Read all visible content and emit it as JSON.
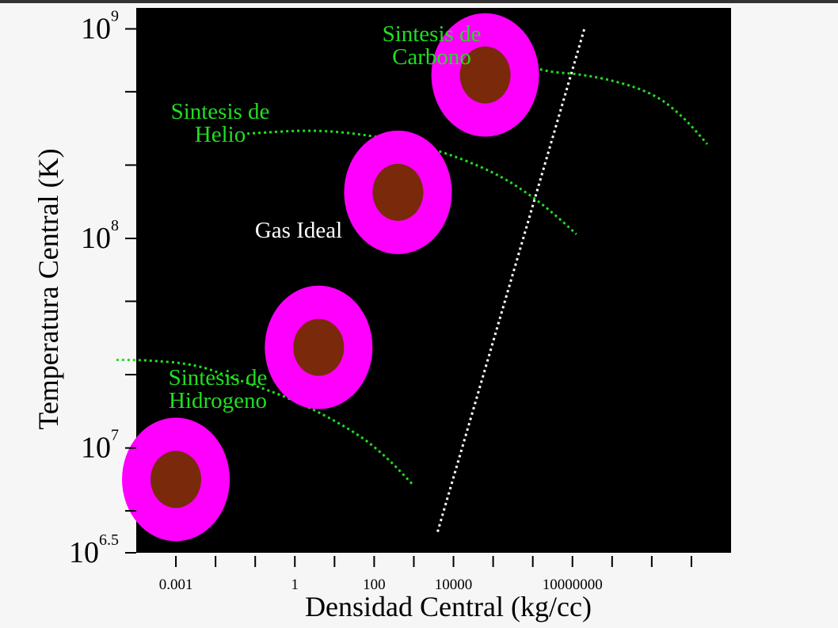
{
  "chart_data": {
    "type": "scatter",
    "xlabel": "Densidad Central (kg/cc)",
    "ylabel": "Temperatura Central (K)",
    "x_scale": "log",
    "y_scale": "log",
    "xlim_log10": [
      -4,
      11
    ],
    "ylim_log10": [
      6.5,
      9.1
    ],
    "x_tick_labels": [
      {
        "log": -3,
        "label": "0.001"
      },
      {
        "log": 0,
        "label": "1"
      },
      {
        "log": 2,
        "label": "100"
      },
      {
        "log": 4,
        "label": "10000"
      },
      {
        "log": 7,
        "label": "10000000"
      }
    ],
    "x_minor_ticks_log": [
      -3,
      -2,
      -1,
      0,
      1,
      2,
      3,
      4,
      5,
      6,
      7,
      8,
      9,
      10
    ],
    "y_tick_labels": [
      {
        "log": 9,
        "base": "10",
        "exp": "9"
      },
      {
        "log": 8,
        "base": "10",
        "exp": "8"
      },
      {
        "log": 7,
        "base": "10",
        "exp": "7"
      },
      {
        "log": 6.5,
        "base": "10",
        "exp": "6.5"
      }
    ],
    "y_minor_ticks_log": [
      8.7,
      8.35,
      7.7,
      7.35,
      6.7
    ],
    "annotations": [
      {
        "text": "Gas Ideal",
        "color": "#ffffff"
      },
      {
        "text": "Sintesis de Hidrogeno",
        "lines": [
          "Sintesis de",
          "Hidrogeno"
        ],
        "color": "#22dd22"
      },
      {
        "text": "Sintesis de Helio",
        "lines": [
          "Sintesis de",
          "Helio"
        ],
        "color": "#22dd22"
      },
      {
        "text": "Sintesis de Carbono",
        "lines": [
          "Sintesis de",
          "Carbono"
        ],
        "color": "#22dd22"
      }
    ],
    "stars": [
      {
        "x_log": -3.0,
        "y_log": 6.85
      },
      {
        "x_log": 0.6,
        "y_log": 7.48
      },
      {
        "x_log": 2.6,
        "y_log": 8.22
      },
      {
        "x_log": 4.8,
        "y_log": 8.78
      }
    ],
    "degeneracy_boundary": [
      {
        "x_log": 3.6,
        "y_log": 6.6
      },
      {
        "x_log": 7.3,
        "y_log": 9.0
      }
    ],
    "burning_curves": [
      {
        "name": "Sintesis de Hidrogeno",
        "points": [
          [
            -4.5,
            7.42
          ],
          [
            -3.8,
            7.42
          ],
          [
            -2.5,
            7.4
          ],
          [
            -1.5,
            7.33
          ],
          [
            0.0,
            7.23
          ],
          [
            1.5,
            7.08
          ],
          [
            2.3,
            6.96
          ],
          [
            3.0,
            6.82
          ]
        ]
      },
      {
        "name": "Sintesis de Helio",
        "points": [
          [
            -1.2,
            8.5
          ],
          [
            0.5,
            8.52
          ],
          [
            2.0,
            8.49
          ],
          [
            3.5,
            8.43
          ],
          [
            5.0,
            8.32
          ],
          [
            6.0,
            8.2
          ],
          [
            6.7,
            8.09
          ],
          [
            7.1,
            8.02
          ]
        ]
      },
      {
        "name": "Sintesis de Carbono",
        "points": [
          [
            4.3,
            9.03
          ],
          [
            5.0,
            8.93
          ],
          [
            6.0,
            8.8
          ],
          [
            7.5,
            8.78
          ],
          [
            9.0,
            8.7
          ],
          [
            9.8,
            8.58
          ],
          [
            10.4,
            8.45
          ]
        ]
      }
    ],
    "colors": {
      "plot_background": "#000000",
      "star_envelope": "#ff00ff",
      "star_core": "#7a2a0a",
      "burning_lines": "#22dd22",
      "boundary_line": "#ffffff",
      "axis_text": "#000000"
    }
  }
}
